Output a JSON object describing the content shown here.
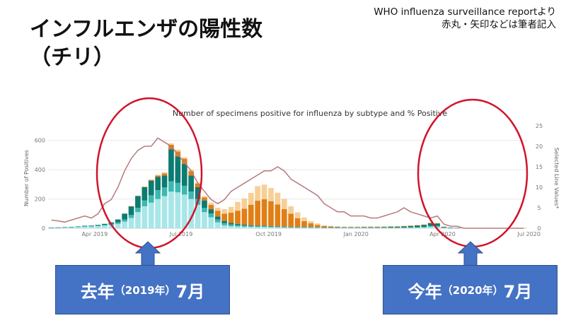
{
  "slide": {
    "title_line1": "インフルエンザの陽性数",
    "title_line2": "（チリ）",
    "source_line1": "WHO influenza surveillance reportより",
    "source_line2": "赤丸・矢印などは筆者記入"
  },
  "callouts": [
    {
      "main": "去年",
      "paren": "（2019年）",
      "month": "7月"
    },
    {
      "main": "今年",
      "paren": "（2020年）",
      "month": "7月"
    }
  ],
  "colors": {
    "callout": "#4472c4",
    "ellipse": "#d0142c",
    "arrow": "#4472c4",
    "line": "#b77b7e"
  },
  "chart_data": {
    "type": "bar",
    "stacked": true,
    "title": "Number of specimens positive for influenza by subtype and % Positive",
    "ylabel": "Number of Positives",
    "y2label": "Selected Line Values*",
    "ylim": [
      0,
      700
    ],
    "y_ticks": [
      0,
      200,
      400,
      600
    ],
    "y2lim": [
      0,
      25
    ],
    "y2_ticks": [
      0,
      5,
      10,
      15,
      20,
      25
    ],
    "x_ticks": [
      "Apr 2019",
      "Jul 2019",
      "Oct 2019",
      "Jan 2020",
      "Apr 2020",
      "Jul 2020"
    ],
    "grid": true,
    "x_start": "2019-02-11",
    "weeks": 72,
    "series": [
      {
        "color": "#a8e6e8",
        "values": [
          3,
          4,
          5,
          6,
          8,
          10,
          12,
          14,
          18,
          22,
          30,
          45,
          70,
          110,
          150,
          175,
          200,
          220,
          250,
          245,
          230,
          200,
          160,
          110,
          75,
          40,
          20,
          14,
          12,
          10,
          9,
          8,
          8,
          7,
          6,
          5,
          5,
          4,
          4,
          4,
          3,
          3,
          3,
          3,
          3,
          3,
          3,
          3,
          3,
          3,
          3,
          3,
          3,
          3,
          3,
          4,
          5,
          10,
          10,
          3,
          2,
          1,
          1,
          1,
          1,
          1,
          1,
          1,
          1,
          1,
          1,
          1
        ]
      },
      {
        "color": "#3cb8b2",
        "values": [
          1,
          1,
          2,
          2,
          3,
          4,
          4,
          5,
          6,
          8,
          10,
          15,
          20,
          30,
          40,
          50,
          60,
          60,
          70,
          65,
          60,
          50,
          40,
          30,
          25,
          20,
          15,
          12,
          10,
          8,
          7,
          6,
          6,
          5,
          4,
          4,
          3,
          3,
          3,
          3,
          3,
          2,
          2,
          2,
          2,
          2,
          2,
          2,
          2,
          2,
          2,
          2,
          2,
          2,
          3,
          3,
          4,
          6,
          6,
          2,
          1,
          1,
          0,
          0,
          0,
          0,
          0,
          0,
          0,
          0,
          0,
          0
        ]
      },
      {
        "color": "#0d7b72",
        "values": [
          1,
          1,
          1,
          1,
          2,
          3,
          3,
          4,
          6,
          10,
          20,
          40,
          60,
          80,
          90,
          100,
          90,
          80,
          220,
          180,
          150,
          110,
          80,
          50,
          30,
          20,
          15,
          10,
          8,
          6,
          5,
          4,
          4,
          3,
          3,
          2,
          2,
          2,
          2,
          2,
          2,
          2,
          2,
          2,
          2,
          2,
          2,
          3,
          3,
          3,
          4,
          5,
          6,
          8,
          10,
          12,
          14,
          18,
          16,
          5,
          2,
          1,
          0,
          0,
          0,
          0,
          0,
          0,
          0,
          0,
          0,
          0
        ]
      },
      {
        "color": "#e07f16",
        "values": [
          0,
          0,
          0,
          0,
          0,
          0,
          0,
          0,
          0,
          0,
          0,
          0,
          1,
          2,
          3,
          5,
          10,
          15,
          30,
          35,
          35,
          30,
          25,
          20,
          30,
          40,
          50,
          70,
          90,
          110,
          140,
          170,
          180,
          170,
          150,
          120,
          90,
          60,
          40,
          25,
          15,
          8,
          5,
          3,
          2,
          2,
          2,
          2,
          2,
          2,
          2,
          2,
          2,
          2,
          2,
          2,
          2,
          3,
          3,
          1,
          0,
          0,
          0,
          0,
          0,
          0,
          0,
          0,
          0,
          0,
          0,
          0
        ]
      },
      {
        "color": "#f7cf95",
        "values": [
          0,
          0,
          0,
          0,
          0,
          0,
          0,
          0,
          0,
          0,
          0,
          0,
          1,
          1,
          2,
          3,
          5,
          8,
          10,
          12,
          10,
          10,
          8,
          10,
          15,
          20,
          30,
          40,
          60,
          70,
          80,
          100,
          100,
          90,
          80,
          70,
          50,
          40,
          25,
          15,
          10,
          6,
          4,
          3,
          2,
          2,
          2,
          2,
          2,
          2,
          2,
          2,
          2,
          2,
          2,
          2,
          2,
          2,
          2,
          1,
          0,
          0,
          0,
          0,
          0,
          0,
          0,
          0,
          0,
          0,
          0,
          0
        ]
      }
    ],
    "line": {
      "name": "% Positive",
      "values": [
        2,
        1.8,
        1.5,
        2,
        2.5,
        3,
        2.5,
        3.5,
        6,
        7,
        10,
        14,
        17,
        19,
        20,
        20,
        22,
        21,
        20,
        18,
        16,
        14,
        11,
        9,
        7,
        6,
        7,
        9,
        10,
        11,
        12,
        13,
        14,
        14,
        15,
        14,
        12,
        11,
        10,
        9,
        8,
        6,
        5,
        4,
        4,
        3,
        3,
        3,
        2.5,
        2.5,
        3,
        3.5,
        4,
        5,
        4,
        3.5,
        3,
        2.5,
        3,
        1,
        0.5,
        0.5,
        0,
        0,
        0,
        0,
        0,
        0,
        0,
        0,
        0,
        0
      ]
    }
  }
}
